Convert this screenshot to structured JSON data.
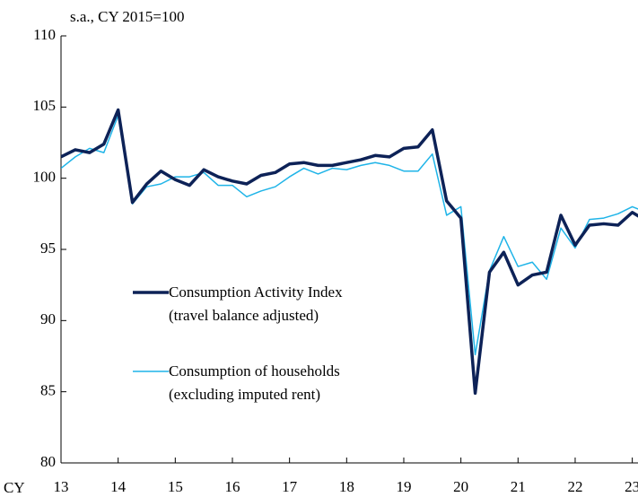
{
  "chart_data": {
    "type": "line",
    "subtitle": "s.a., CY 2015=100",
    "xlabel": "CY",
    "x": [
      13,
      13.25,
      13.5,
      13.75,
      14,
      14.25,
      14.5,
      14.75,
      15,
      15.25,
      15.5,
      15.75,
      16,
      16.25,
      16.5,
      16.75,
      17,
      17.25,
      17.5,
      17.75,
      18,
      18.25,
      18.5,
      18.75,
      19,
      19.25,
      19.5,
      19.75,
      20,
      20.25,
      20.5,
      20.75,
      21,
      21.25,
      21.5,
      21.75,
      22,
      22.25,
      22.5,
      22.75,
      23,
      23.25
    ],
    "series": [
      {
        "name": "Consumption Activity Index\n(travel balance adjusted)",
        "color": "#0d2257",
        "width": 3.5,
        "values": [
          101.5,
          102.0,
          101.8,
          102.4,
          104.8,
          98.3,
          99.6,
          100.5,
          99.9,
          99.5,
          100.6,
          100.1,
          99.8,
          99.6,
          100.2,
          100.4,
          101.0,
          101.1,
          100.9,
          100.9,
          101.1,
          101.3,
          101.6,
          101.5,
          102.1,
          102.2,
          103.4,
          98.4,
          97.2,
          84.9,
          93.4,
          94.8,
          92.5,
          93.2,
          93.4,
          97.4,
          95.3,
          96.7,
          96.8,
          96.7,
          97.6,
          97.0
        ]
      },
      {
        "name": "Consumption of households\n(excluding imputed rent)",
        "color": "#1fb4e8",
        "width": 1.5,
        "values": [
          100.7,
          101.5,
          102.1,
          101.8,
          104.4,
          98.2,
          99.4,
          99.6,
          100.1,
          100.1,
          100.4,
          99.5,
          99.5,
          98.7,
          99.1,
          99.4,
          100.1,
          100.7,
          100.3,
          100.7,
          100.6,
          100.9,
          101.1,
          100.9,
          100.5,
          100.5,
          101.7,
          97.4,
          98.0,
          87.6,
          93.5,
          95.9,
          93.8,
          94.1,
          92.9,
          96.5,
          95.1,
          97.1,
          97.2,
          97.5,
          98.0,
          97.6
        ]
      }
    ],
    "xlim": [
      13,
      23.1
    ],
    "xticks": [
      13,
      14,
      15,
      16,
      17,
      18,
      19,
      20,
      21,
      22,
      23
    ],
    "ylim": [
      80,
      110
    ],
    "yticks": [
      80,
      85,
      90,
      95,
      100,
      105,
      110
    ],
    "legend": "center-left",
    "grid": false
  }
}
